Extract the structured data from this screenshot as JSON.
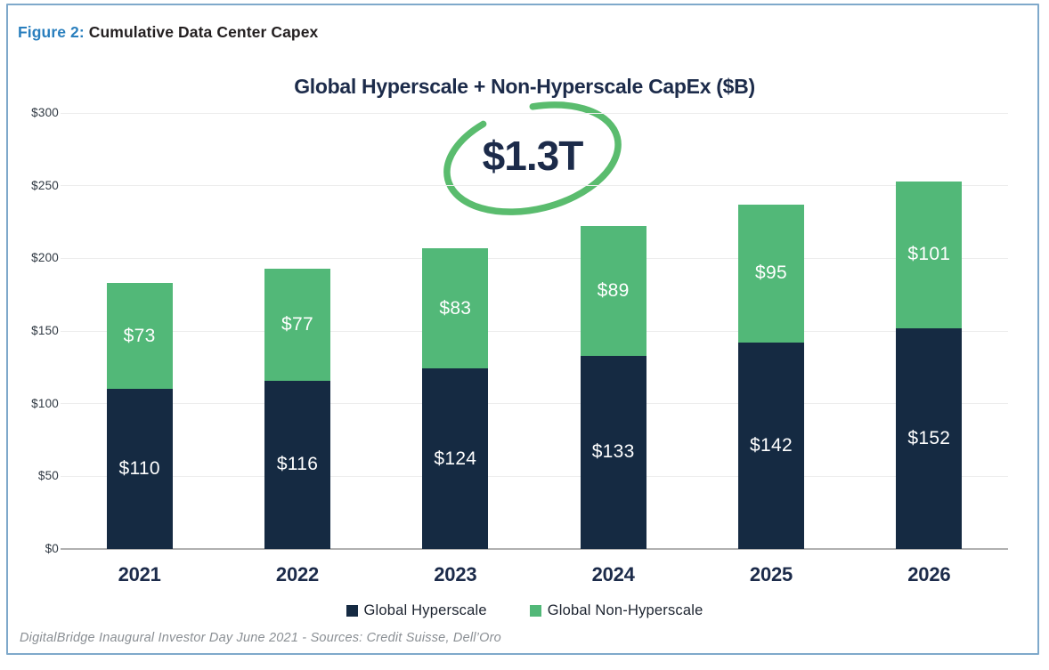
{
  "header": {
    "figure_label": "Figure 2:",
    "title": "Cumulative Data Center Capex"
  },
  "chart_data": {
    "type": "bar",
    "stacked": true,
    "title": "Global Hyperscale + Non-Hyperscale CapEx ($B)",
    "categories": [
      "2021",
      "2022",
      "2023",
      "2024",
      "2025",
      "2026"
    ],
    "series": [
      {
        "name": "Global Hyperscale",
        "color": "#152a42",
        "values": [
          110,
          116,
          124,
          133,
          142,
          152
        ],
        "bar_labels": [
          "$110",
          "$116",
          "$124",
          "$133",
          "$142",
          "$152"
        ]
      },
      {
        "name": "Global Non-Hyperscale",
        "color": "#52b878",
        "values": [
          73,
          77,
          83,
          89,
          95,
          101
        ],
        "bar_labels": [
          "$73",
          "$77",
          "$83",
          "$89",
          "$95",
          "$101"
        ]
      }
    ],
    "totals": [
      183,
      193,
      207,
      222,
      237,
      253
    ],
    "annotation": {
      "text": "$1.3T",
      "circle_color": "#5abc6e"
    },
    "y_axis": {
      "tick_labels": [
        "$300",
        "$250",
        "$200",
        "$150",
        "$100",
        "$50",
        "$0"
      ],
      "tick_values": [
        300,
        250,
        200,
        150,
        100,
        50,
        0
      ],
      "range": [
        0,
        300
      ]
    },
    "grid": true,
    "legend_position": "bottom"
  },
  "footer": {
    "source": "DigitalBridge Inaugural Investor Day June 2021 - Sources: Credit Suisse, Dell’Oro"
  },
  "colors": {
    "panel_border": "#7fa9cb",
    "figure_label_blue": "#2a7fbe",
    "header_text": "#231f20",
    "chart_navy": "#1c2b4a",
    "bar_hyperscale": "#152a42",
    "bar_non_hyperscale": "#52b878",
    "circle_green": "#5abc6e",
    "gridline": "#ededed",
    "axis_line": "#b0b0b0",
    "footer_gray": "#8a8f94",
    "bar_label_white": "#ffffff"
  }
}
